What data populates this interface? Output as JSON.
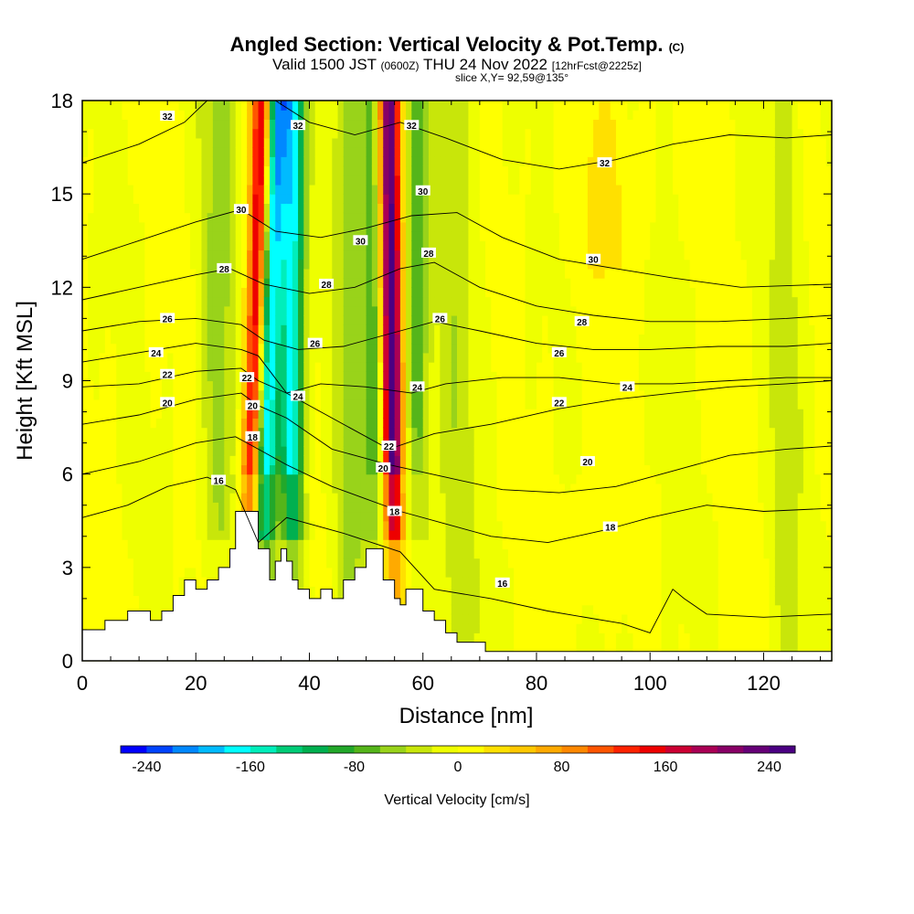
{
  "title": {
    "main": "Angled Section: Vertical Velocity & Pot.Temp.",
    "main_tag": "(C)",
    "valid_prefix": "Valid 1500 JST",
    "valid_utc": "(0600Z)",
    "valid_date": "THU 24 Nov 2022",
    "forecast": "[12hrFcst@2225z]",
    "slice": "slice X,Y= 92,59@135°"
  },
  "chart_data": {
    "type": "heatmap",
    "xlabel": "Distance [nm]",
    "ylabel": "Height [Kft MSL]",
    "xlim": [
      0,
      132
    ],
    "ylim": [
      0,
      18
    ],
    "x_ticks": [
      0,
      20,
      40,
      60,
      80,
      100,
      120
    ],
    "y_ticks": [
      0,
      3,
      6,
      9,
      12,
      15,
      18
    ],
    "colorbar": {
      "label": "Vertical Velocity [cm/s]",
      "range": [
        -260,
        260
      ],
      "tick_labels": [
        "-240",
        "-160",
        "-80",
        "0",
        "80",
        "160",
        "240"
      ],
      "tick_values": [
        -240,
        -160,
        -80,
        0,
        80,
        160,
        240
      ],
      "colors": [
        "#0000ff",
        "#0044ff",
        "#0088ff",
        "#00bbff",
        "#00ffff",
        "#00eebb",
        "#00cc77",
        "#00b050",
        "#22a82a",
        "#55b51a",
        "#99d31a",
        "#c8e60a",
        "#eeff00",
        "#ffff00",
        "#ffe000",
        "#ffc800",
        "#ffaa00",
        "#ff8800",
        "#ff5500",
        "#ff2200",
        "#ee0000",
        "#cc0033",
        "#aa0055",
        "#880066",
        "#660077",
        "#4b0082"
      ]
    },
    "terrain_kft": [
      [
        0,
        1.0
      ],
      [
        4,
        1.0
      ],
      [
        4,
        1.3
      ],
      [
        8,
        1.3
      ],
      [
        8,
        1.6
      ],
      [
        12,
        1.6
      ],
      [
        12,
        1.3
      ],
      [
        14,
        1.3
      ],
      [
        14,
        1.6
      ],
      [
        16,
        1.6
      ],
      [
        16,
        2.1
      ],
      [
        18,
        2.1
      ],
      [
        18,
        2.6
      ],
      [
        20,
        2.6
      ],
      [
        20,
        2.3
      ],
      [
        22,
        2.3
      ],
      [
        22,
        2.6
      ],
      [
        24,
        2.6
      ],
      [
        24,
        3.0
      ],
      [
        26,
        3.0
      ],
      [
        26,
        3.6
      ],
      [
        27,
        3.6
      ],
      [
        27,
        4.8
      ],
      [
        31,
        4.8
      ],
      [
        31,
        3.6
      ],
      [
        33,
        3.6
      ],
      [
        33,
        2.6
      ],
      [
        34,
        2.6
      ],
      [
        34,
        3.2
      ],
      [
        35,
        3.2
      ],
      [
        35,
        3.6
      ],
      [
        36,
        3.6
      ],
      [
        36,
        3.2
      ],
      [
        37,
        3.2
      ],
      [
        37,
        2.6
      ],
      [
        38,
        2.6
      ],
      [
        38,
        2.3
      ],
      [
        40,
        2.3
      ],
      [
        40,
        2.0
      ],
      [
        42,
        2.0
      ],
      [
        42,
        2.3
      ],
      [
        44,
        2.3
      ],
      [
        44,
        2.0
      ],
      [
        46,
        2.0
      ],
      [
        46,
        2.6
      ],
      [
        48,
        2.6
      ],
      [
        48,
        3.0
      ],
      [
        50,
        3.0
      ],
      [
        50,
        3.6
      ],
      [
        53,
        3.6
      ],
      [
        53,
        2.6
      ],
      [
        55,
        2.6
      ],
      [
        55,
        2.0
      ],
      [
        56,
        2.0
      ],
      [
        56,
        1.8
      ],
      [
        57,
        1.8
      ],
      [
        57,
        2.3
      ],
      [
        60,
        2.3
      ],
      [
        60,
        1.6
      ],
      [
        62,
        1.6
      ],
      [
        62,
        1.3
      ],
      [
        64,
        1.3
      ],
      [
        64,
        0.9
      ],
      [
        66,
        0.9
      ],
      [
        66,
        0.6
      ],
      [
        71,
        0.6
      ],
      [
        71,
        0.3
      ],
      [
        80,
        0.3
      ],
      [
        80,
        0.3
      ],
      [
        132,
        0.3
      ]
    ],
    "contours": [
      {
        "label": "16",
        "points": [
          [
            0,
            4.6
          ],
          [
            8,
            5.0
          ],
          [
            15,
            5.6
          ],
          [
            22,
            5.9
          ],
          [
            27,
            5.5
          ],
          [
            31,
            3.8
          ],
          [
            36,
            4.6
          ],
          [
            46,
            4.1
          ],
          [
            56,
            3.5
          ],
          [
            62,
            2.3
          ],
          [
            72,
            2.0
          ],
          [
            82,
            1.6
          ],
          [
            95,
            1.2
          ],
          [
            100,
            0.9
          ],
          [
            104,
            2.3
          ],
          [
            106,
            2.0
          ],
          [
            110,
            1.5
          ],
          [
            120,
            1.4
          ],
          [
            132,
            1.5
          ]
        ],
        "labels": [
          [
            24,
            5.8
          ],
          [
            74,
            2.5
          ]
        ]
      },
      {
        "label": "18",
        "points": [
          [
            0,
            6.0
          ],
          [
            10,
            6.4
          ],
          [
            20,
            7.0
          ],
          [
            27,
            7.2
          ],
          [
            31,
            6.8
          ],
          [
            36,
            6.3
          ],
          [
            44,
            5.6
          ],
          [
            50,
            5.2
          ],
          [
            56,
            4.8
          ],
          [
            64,
            4.4
          ],
          [
            72,
            4.0
          ],
          [
            82,
            3.8
          ],
          [
            92,
            4.2
          ],
          [
            100,
            4.6
          ],
          [
            110,
            5.0
          ],
          [
            120,
            4.8
          ],
          [
            132,
            4.9
          ]
        ],
        "labels": [
          [
            30,
            7.2
          ],
          [
            55,
            4.8
          ],
          [
            93,
            4.3
          ]
        ]
      },
      {
        "label": "20",
        "points": [
          [
            0,
            7.6
          ],
          [
            10,
            7.9
          ],
          [
            20,
            8.4
          ],
          [
            28,
            8.6
          ],
          [
            31,
            8.2
          ],
          [
            36,
            7.8
          ],
          [
            44,
            6.8
          ],
          [
            54,
            6.3
          ],
          [
            64,
            5.9
          ],
          [
            74,
            5.5
          ],
          [
            84,
            5.4
          ],
          [
            94,
            5.6
          ],
          [
            104,
            6.1
          ],
          [
            114,
            6.6
          ],
          [
            124,
            6.8
          ],
          [
            132,
            6.9
          ]
        ],
        "labels": [
          [
            15,
            8.3
          ],
          [
            30,
            8.2
          ],
          [
            53,
            6.2
          ],
          [
            89,
            6.4
          ]
        ]
      },
      {
        "label": "22",
        "points": [
          [
            0,
            8.8
          ],
          [
            10,
            8.9
          ],
          [
            20,
            9.3
          ],
          [
            28,
            9.4
          ],
          [
            31,
            9.0
          ],
          [
            36,
            8.6
          ],
          [
            44,
            7.8
          ],
          [
            54,
            6.8
          ],
          [
            62,
            7.3
          ],
          [
            72,
            7.6
          ],
          [
            84,
            8.1
          ],
          [
            94,
            8.4
          ],
          [
            104,
            8.6
          ],
          [
            114,
            8.8
          ],
          [
            124,
            8.9
          ],
          [
            132,
            9.0
          ]
        ],
        "labels": [
          [
            15,
            9.2
          ],
          [
            29,
            9.1
          ],
          [
            54,
            6.9
          ],
          [
            84,
            8.3
          ]
        ]
      },
      {
        "label": "24",
        "points": [
          [
            0,
            9.6
          ],
          [
            10,
            9.9
          ],
          [
            20,
            10.2
          ],
          [
            28,
            10.0
          ],
          [
            31,
            9.8
          ],
          [
            36,
            8.6
          ],
          [
            42,
            8.9
          ],
          [
            50,
            8.8
          ],
          [
            58,
            8.6
          ],
          [
            64,
            8.9
          ],
          [
            74,
            9.1
          ],
          [
            84,
            9.1
          ],
          [
            94,
            8.9
          ],
          [
            104,
            8.9
          ],
          [
            114,
            9.0
          ],
          [
            124,
            9.1
          ],
          [
            132,
            9.1
          ]
        ],
        "labels": [
          [
            13,
            9.9
          ],
          [
            38,
            8.5
          ],
          [
            59,
            8.8
          ],
          [
            96,
            8.8
          ]
        ]
      },
      {
        "label": "26",
        "points": [
          [
            0,
            10.6
          ],
          [
            10,
            10.9
          ],
          [
            20,
            11.0
          ],
          [
            28,
            10.8
          ],
          [
            32,
            10.3
          ],
          [
            38,
            10.0
          ],
          [
            46,
            10.1
          ],
          [
            56,
            10.6
          ],
          [
            62,
            10.9
          ],
          [
            70,
            10.6
          ],
          [
            80,
            10.2
          ],
          [
            90,
            10.0
          ],
          [
            100,
            10.0
          ],
          [
            112,
            10.1
          ],
          [
            124,
            10.1
          ],
          [
            132,
            10.2
          ]
        ],
        "labels": [
          [
            15,
            11.0
          ],
          [
            41,
            10.2
          ],
          [
            63,
            11.0
          ],
          [
            84,
            9.9
          ]
        ]
      },
      {
        "label": "28",
        "points": [
          [
            0,
            11.6
          ],
          [
            10,
            12.0
          ],
          [
            20,
            12.4
          ],
          [
            26,
            12.6
          ],
          [
            32,
            12.1
          ],
          [
            40,
            11.8
          ],
          [
            48,
            12.0
          ],
          [
            56,
            12.6
          ],
          [
            62,
            12.8
          ],
          [
            70,
            12.0
          ],
          [
            80,
            11.4
          ],
          [
            90,
            11.1
          ],
          [
            100,
            10.9
          ],
          [
            112,
            10.9
          ],
          [
            124,
            11.0
          ],
          [
            132,
            11.1
          ]
        ],
        "labels": [
          [
            25,
            12.6
          ],
          [
            43,
            12.1
          ],
          [
            61,
            13.1
          ],
          [
            88,
            10.9
          ]
        ]
      },
      {
        "label": "30",
        "points": [
          [
            0,
            12.9
          ],
          [
            10,
            13.5
          ],
          [
            20,
            14.1
          ],
          [
            28,
            14.5
          ],
          [
            34,
            13.8
          ],
          [
            42,
            13.6
          ],
          [
            50,
            13.9
          ],
          [
            58,
            14.3
          ],
          [
            66,
            14.4
          ],
          [
            74,
            13.6
          ],
          [
            84,
            12.9
          ],
          [
            94,
            12.6
          ],
          [
            104,
            12.3
          ],
          [
            116,
            12.0
          ],
          [
            132,
            12.1
          ]
        ],
        "labels": [
          [
            28,
            14.5
          ],
          [
            49,
            13.5
          ],
          [
            60,
            15.1
          ],
          [
            90,
            12.9
          ]
        ]
      },
      {
        "label": "32",
        "points": [
          [
            0,
            16.0
          ],
          [
            10,
            16.6
          ],
          [
            18,
            17.3
          ],
          [
            22,
            18.0
          ]
        ],
        "labels": [
          [
            15,
            17.5
          ]
        ]
      },
      {
        "label": "32",
        "points": [
          [
            34,
            18.0
          ],
          [
            40,
            17.3
          ],
          [
            48,
            16.9
          ],
          [
            56,
            17.3
          ],
          [
            64,
            16.8
          ],
          [
            74,
            16.1
          ],
          [
            84,
            15.8
          ],
          [
            94,
            16.1
          ],
          [
            104,
            16.6
          ],
          [
            114,
            16.9
          ],
          [
            124,
            16.8
          ],
          [
            132,
            16.9
          ]
        ],
        "labels": [
          [
            38,
            17.2
          ],
          [
            58,
            17.2
          ],
          [
            92,
            16.0
          ]
        ]
      }
    ],
    "features": [
      {
        "type": "downdraft-band",
        "x_top": 34,
        "x_bottom": 31,
        "peak_cm_s": -220
      },
      {
        "type": "downdraft-band",
        "x_top": 37,
        "x_bottom": 37,
        "peak_cm_s": -170
      },
      {
        "type": "updraft-band",
        "x_top": 32,
        "x_bottom": 29,
        "peak_cm_s": 220
      },
      {
        "type": "updraft-band",
        "x_top": 54,
        "x_bottom": 55,
        "peak_cm_s": 250
      },
      {
        "type": "downdraft-band",
        "x_top": 51,
        "x_bottom": 52,
        "peak_cm_s": -80
      },
      {
        "type": "downdraft-band",
        "x_top": 59,
        "x_bottom": 59,
        "peak_cm_s": -70
      }
    ]
  }
}
